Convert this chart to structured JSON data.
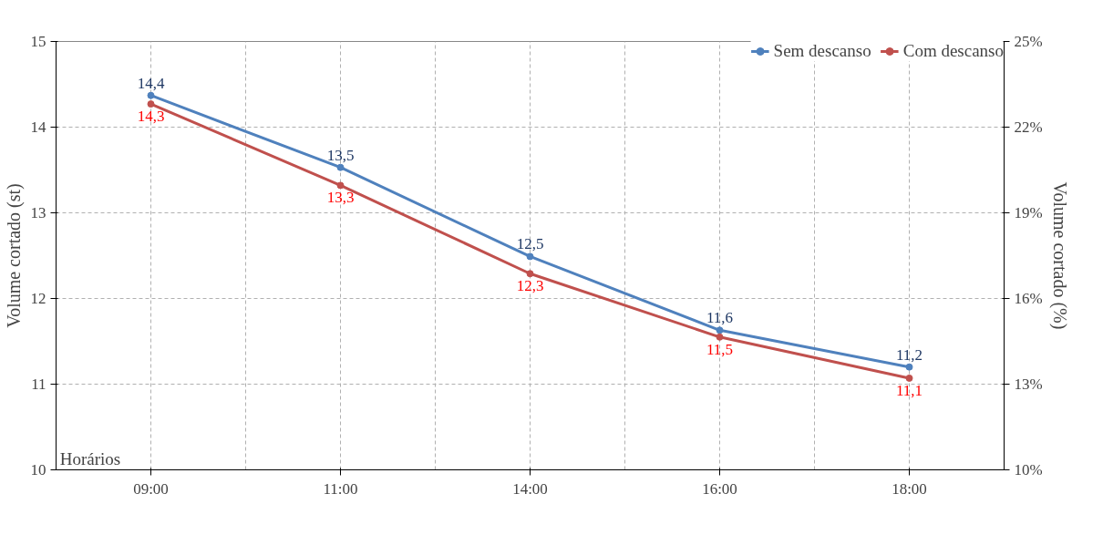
{
  "chart_data": {
    "type": "line",
    "xlabel": "Horários",
    "ylabel": "Volume cortado (st)",
    "y2label": "Volume cortado (%)",
    "categories": [
      "09:00",
      "11:00",
      "14:00",
      "16:00",
      "18:00"
    ],
    "series": [
      {
        "name": "Sem descanso",
        "color": "#4f81bd",
        "values": [
          14.37,
          13.53,
          12.49,
          11.63,
          11.2
        ],
        "value_labels": [
          "14,4",
          "13,5",
          "12,5",
          "11,6",
          "11,2"
        ]
      },
      {
        "name": "Com descanso",
        "color": "#c0504d",
        "values": [
          14.27,
          13.32,
          12.29,
          11.55,
          11.07
        ],
        "value_labels": [
          "14,3",
          "13,3",
          "12,3",
          "11,5",
          "11,1"
        ]
      }
    ],
    "ylim": [
      10,
      15
    ],
    "yticks": [
      10,
      11,
      12,
      13,
      14,
      15
    ],
    "y2lim": [
      10,
      25
    ],
    "y2ticks": [
      {
        "value": 10,
        "label": "10%"
      },
      {
        "value": 13,
        "label": "13%"
      },
      {
        "value": 16,
        "label": "16%"
      },
      {
        "value": 19,
        "label": "19%"
      },
      {
        "value": 22,
        "label": "22%"
      },
      {
        "value": 25,
        "label": "25%"
      }
    ],
    "grid": true,
    "legend": "top right",
    "marker": "circle",
    "line_style": "solid"
  }
}
